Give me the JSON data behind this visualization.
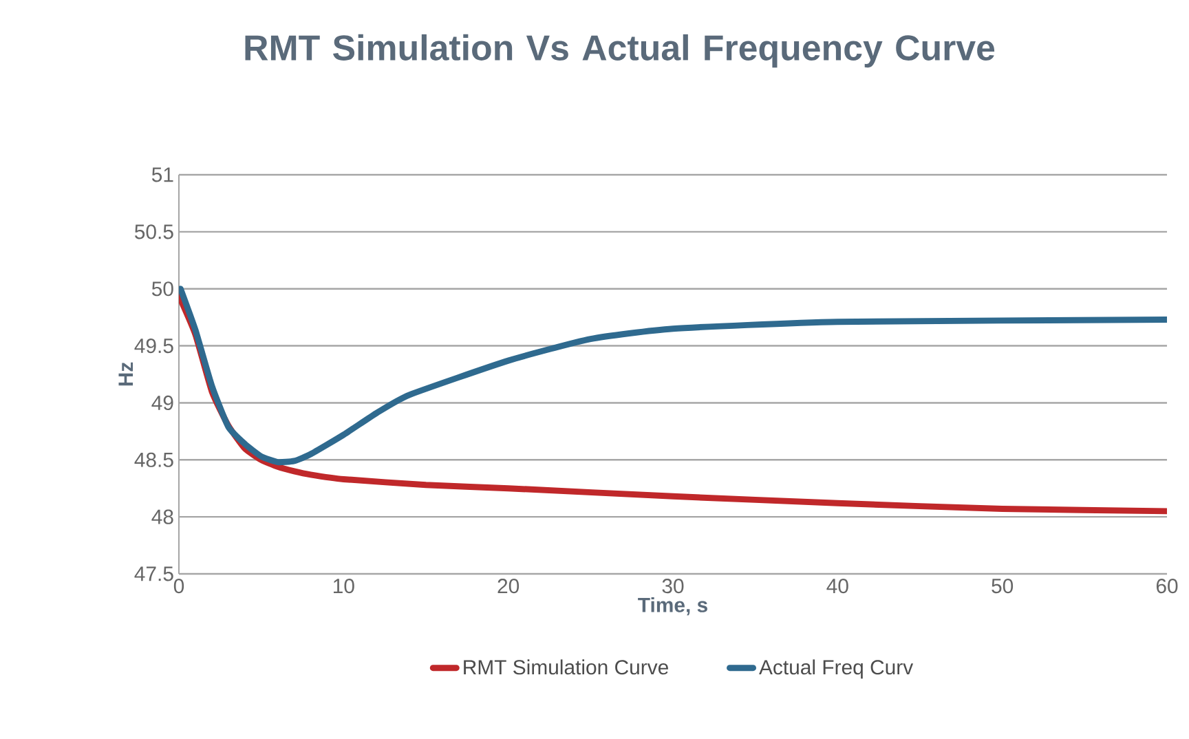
{
  "chart_data": {
    "type": "line",
    "title": "RMT Simulation Vs Actual Frequency Curve",
    "xlabel": "Time, s",
    "ylabel": "Hz",
    "xlim": [
      0,
      60
    ],
    "xticks": [
      0,
      10,
      20,
      30,
      40,
      50,
      60
    ],
    "ylim": [
      47.5,
      51
    ],
    "yticks": [
      47.5,
      48,
      48.5,
      49,
      49.5,
      50,
      50.5,
      51
    ],
    "grid": "y",
    "legend": "bottom",
    "marker": "none",
    "line_style": "solid",
    "series": [
      {
        "name": "RMT Simulation Curve",
        "color": "#c0282a",
        "x": [
          0,
          1,
          2,
          3,
          4,
          5,
          6,
          7,
          8,
          10,
          15,
          20,
          30,
          40,
          50,
          60
        ],
        "values": [
          49.94,
          49.6,
          49.1,
          48.8,
          48.6,
          48.5,
          48.44,
          48.4,
          48.37,
          48.33,
          48.28,
          48.25,
          48.18,
          48.12,
          48.07,
          48.05
        ]
      },
      {
        "name": "Actual Freq Curv",
        "color": "#2f6a8f",
        "x": [
          0.1,
          1,
          2,
          3,
          4,
          5,
          6,
          7,
          8,
          10,
          12,
          14,
          20,
          25,
          30,
          40,
          60
        ],
        "values": [
          50.0,
          49.64,
          49.15,
          48.79,
          48.64,
          48.53,
          48.48,
          48.49,
          48.55,
          48.72,
          48.91,
          49.07,
          49.37,
          49.56,
          49.65,
          49.71,
          49.73
        ]
      }
    ]
  }
}
